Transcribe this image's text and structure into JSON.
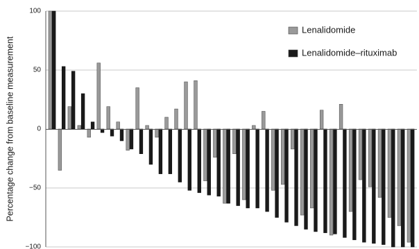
{
  "chart_data": {
    "type": "bar",
    "ylabel": "Percentage change from baseline measurement",
    "xlabel": "",
    "title": "",
    "ylim": [
      -100,
      100
    ],
    "yticks": [
      100,
      50,
      0,
      -50,
      -100
    ],
    "grid": true,
    "legend_position": "top-right",
    "colors": {
      "Lenalidomide": "#9a9a9a",
      "Lenalidomide–rituximab": "#1a1a1a"
    },
    "legend": [
      "Lenalidomide",
      "Lenalidomide–rituximab"
    ],
    "series": [
      {
        "name": "Lenalidomide",
        "values": [
          100,
          -35,
          19,
          3,
          -7,
          56,
          19,
          6,
          -18,
          35,
          3,
          -7,
          10,
          17,
          40,
          41,
          -44,
          -24,
          -63,
          -21,
          -60,
          3,
          15,
          -52,
          -47,
          -17,
          -73,
          -67,
          16,
          -90,
          21,
          -70,
          -43,
          -49,
          -58,
          -75,
          -82,
          -96
        ]
      },
      {
        "name": "Lenalidomide–rituximab",
        "values": [
          100,
          53,
          49,
          30,
          6,
          -3,
          -6,
          -10,
          -17,
          -21,
          -30,
          -38,
          -38,
          -45,
          -52,
          -54,
          -56,
          -57,
          -63,
          -65,
          -67,
          -67,
          -70,
          -75,
          -79,
          -82,
          -85,
          -87,
          -88,
          -89,
          -92,
          -94,
          -96,
          -97,
          -98,
          -100,
          -100,
          -100
        ]
      }
    ]
  }
}
